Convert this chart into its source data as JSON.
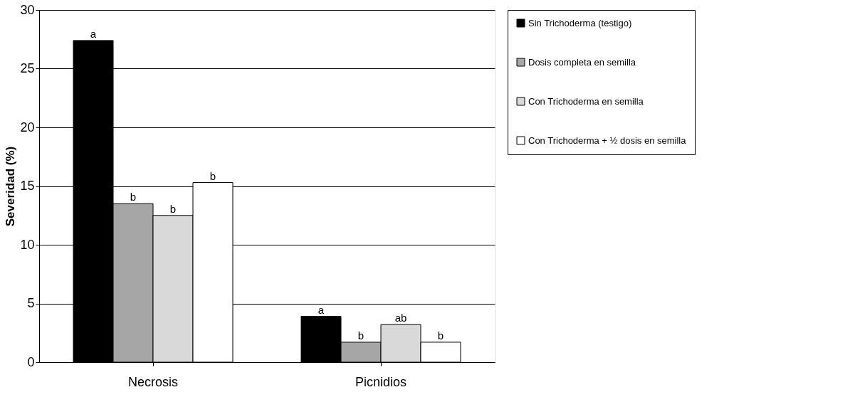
{
  "chart_data": {
    "type": "bar",
    "ylabel": "Severidad (%)",
    "categories": [
      "Necrosis",
      "Picnidios"
    ],
    "series": [
      {
        "name": "Sin Trichoderma (testigo)",
        "color": "#000000",
        "values": [
          27.4,
          3.9
        ],
        "value_labels": [
          "a",
          "a"
        ]
      },
      {
        "name": "Dosis completa en semilla",
        "color": "#a6a6a6",
        "values": [
          13.5,
          1.7
        ],
        "value_labels": [
          "b",
          "b"
        ]
      },
      {
        "name": "Con Trichoderma en semilla",
        "color": "#d9d9d9",
        "values": [
          12.5,
          3.2
        ],
        "value_labels": [
          "b",
          "ab"
        ]
      },
      {
        "name": "Con Trichoderma + ½ dosis en semilla",
        "color": "#ffffff",
        "values": [
          15.3,
          1.7
        ],
        "value_labels": [
          "b",
          "b"
        ]
      }
    ],
    "ylim": [
      0,
      30
    ],
    "yticks": [
      0,
      5,
      10,
      15,
      20,
      25,
      30
    ],
    "grid": "y",
    "legend": "right"
  }
}
